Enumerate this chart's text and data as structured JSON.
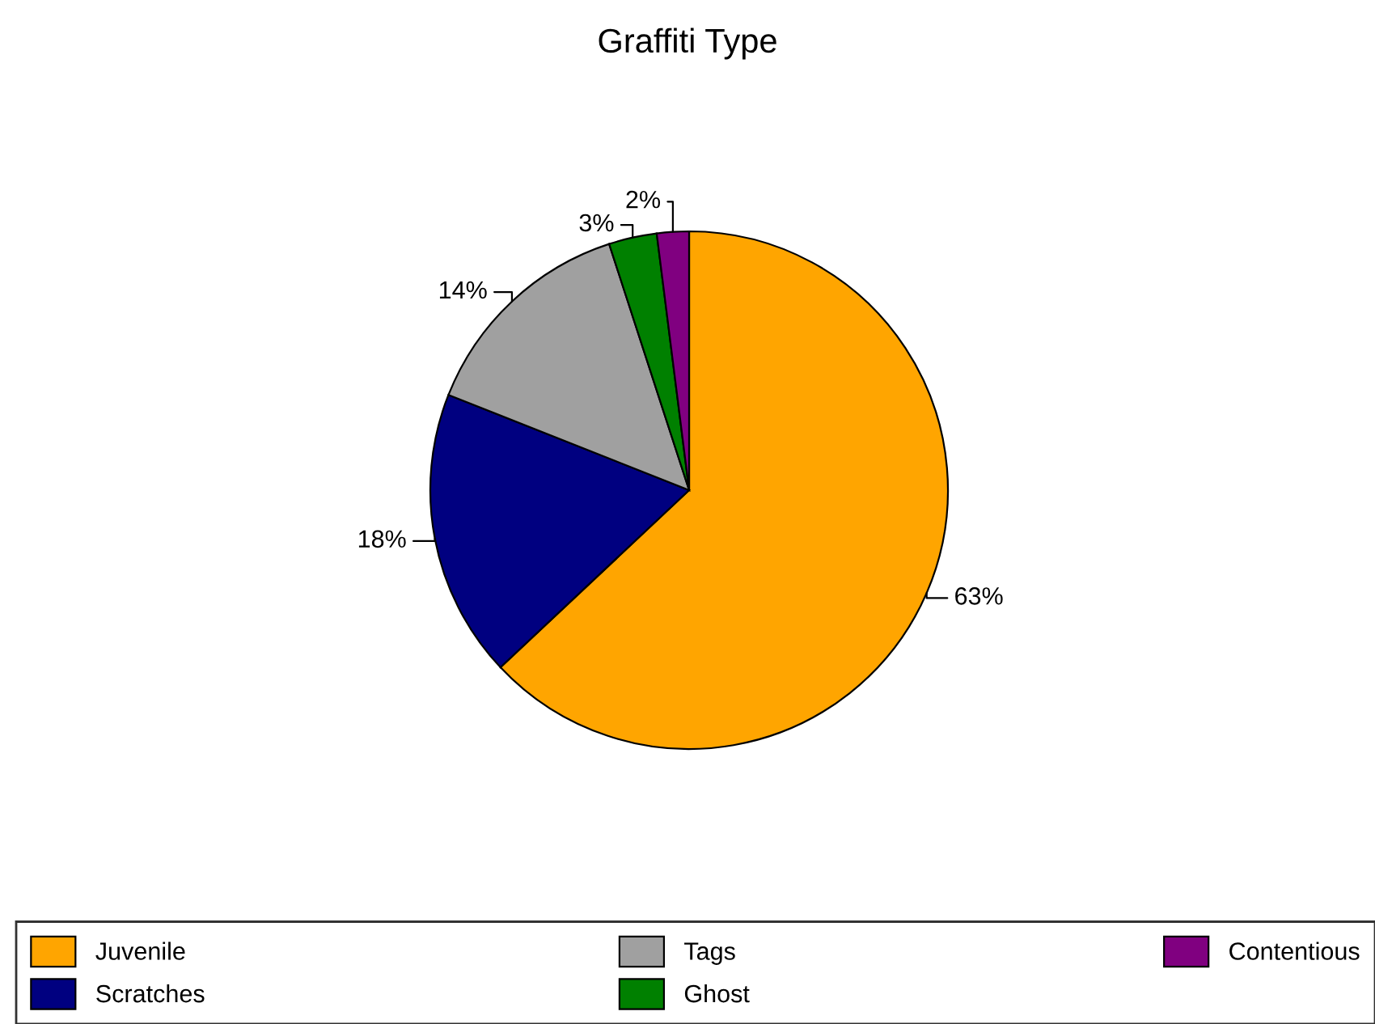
{
  "chart_data": {
    "type": "pie",
    "title": "Graffiti Type",
    "categories": [
      "Juvenile",
      "Scratches",
      "Tags",
      "Ghost",
      "Contentious"
    ],
    "values": [
      63,
      18,
      14,
      3,
      2
    ],
    "colors": [
      "#ffa500",
      "#000080",
      "#a0a0a0",
      "#008000",
      "#800080"
    ],
    "value_labels": [
      "63%",
      "18%",
      "14%",
      "3%",
      "2%"
    ],
    "legend": "bottom"
  }
}
